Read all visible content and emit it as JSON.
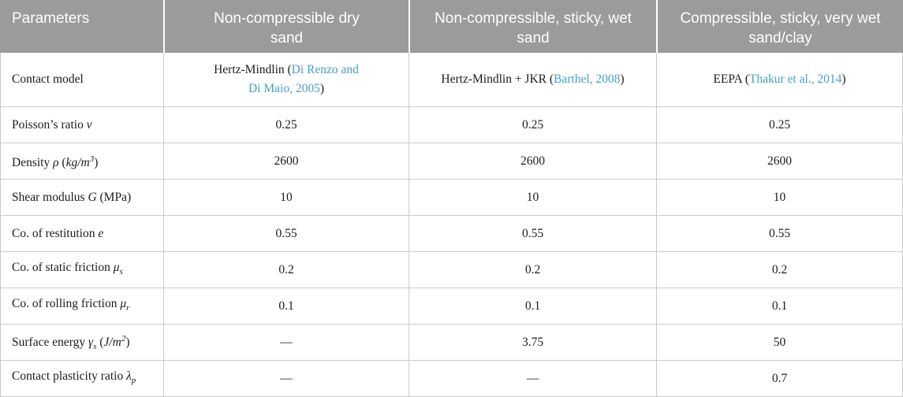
{
  "colors": {
    "header_bg": "#9b9b9b",
    "header_text": "#ffffff",
    "border": "#cbcbcb",
    "body_text": "#1c1c1c",
    "citation": "#46a0c3"
  },
  "table": {
    "headers": [
      "Parameters",
      "Non-compressible dry sand",
      "Non-compressible, sticky, wet sand",
      "Compressible, sticky, very wet sand/clay"
    ],
    "contact_row": {
      "param_parts": [
        {
          "t": "Contact model",
          "s": "plain"
        }
      ],
      "cells": [
        {
          "pre": "Hertz-Mindlin (",
          "cite": "Di Renzo and Di Maio, 2005",
          "post": ")"
        },
        {
          "pre": "Hertz-Mindlin + JKR (",
          "cite": "Barthel, 2008",
          "post": ")"
        },
        {
          "pre": "EEPA (",
          "cite": "Thakur et al., 2014",
          "post": ")"
        }
      ]
    },
    "rows": [
      {
        "param_parts": [
          {
            "t": "Poisson’s ratio ",
            "s": "plain"
          },
          {
            "t": "ν",
            "s": "it"
          }
        ],
        "values": [
          "0.25",
          "0.25",
          "0.25"
        ]
      },
      {
        "param_parts": [
          {
            "t": "Density ",
            "s": "plain"
          },
          {
            "t": "ρ",
            "s": "it"
          },
          {
            "t": " (",
            "s": "plain"
          },
          {
            "t": "kg/m",
            "s": "it"
          },
          {
            "t": "3",
            "s": "sup"
          },
          {
            "t": ")",
            "s": "plain"
          }
        ],
        "values": [
          "2600",
          "2600",
          "2600"
        ]
      },
      {
        "param_parts": [
          {
            "t": "Shear modulus ",
            "s": "plain"
          },
          {
            "t": "G",
            "s": "it"
          },
          {
            "t": " (MPa)",
            "s": "plain"
          }
        ],
        "values": [
          "10",
          "10",
          "10"
        ]
      },
      {
        "param_parts": [
          {
            "t": "Co. of restitution ",
            "s": "plain"
          },
          {
            "t": "e",
            "s": "it"
          }
        ],
        "values": [
          "0.55",
          "0.55",
          "0.55"
        ]
      },
      {
        "param_parts": [
          {
            "t": "Co. of static friction ",
            "s": "plain"
          },
          {
            "t": "μ",
            "s": "it"
          },
          {
            "t": "s",
            "s": "sub"
          }
        ],
        "values": [
          "0.2",
          "0.2",
          "0.2"
        ]
      },
      {
        "param_parts": [
          {
            "t": "Co. of rolling friction ",
            "s": "plain"
          },
          {
            "t": "μ",
            "s": "it"
          },
          {
            "t": "r",
            "s": "sub"
          }
        ],
        "values": [
          "0.1",
          "0.1",
          "0.1"
        ]
      },
      {
        "param_parts": [
          {
            "t": "Surface energy ",
            "s": "plain"
          },
          {
            "t": "γ",
            "s": "it"
          },
          {
            "t": "s",
            "s": "sub"
          },
          {
            "t": " (",
            "s": "plain"
          },
          {
            "t": "J/m",
            "s": "it"
          },
          {
            "t": "2",
            "s": "sup"
          },
          {
            "t": ")",
            "s": "plain"
          }
        ],
        "values": [
          "—",
          "3.75",
          "50"
        ]
      },
      {
        "param_parts": [
          {
            "t": "Contact plasticity ratio ",
            "s": "plain"
          },
          {
            "t": "λ",
            "s": "it"
          },
          {
            "t": "p",
            "s": "sub"
          }
        ],
        "values": [
          "—",
          "—",
          "0.7"
        ]
      }
    ]
  }
}
